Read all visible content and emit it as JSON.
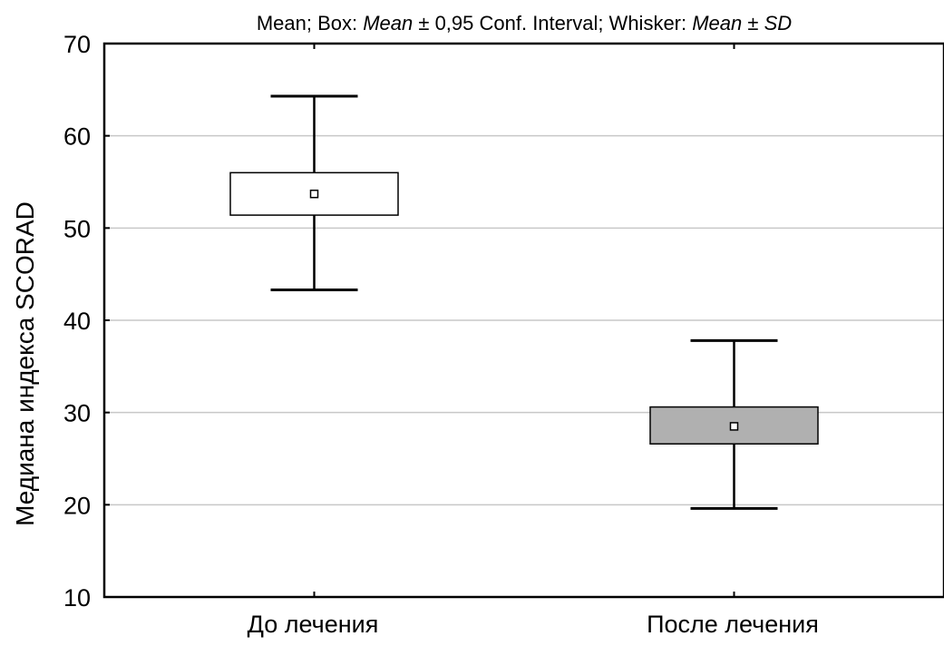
{
  "chart_data": {
    "type": "box",
    "title_parts": [
      {
        "text": "Mean; Box: ",
        "italic": false
      },
      {
        "text": "Mean",
        "italic": true
      },
      {
        "text": " ± 0,95 Conf. Interval; Whisker: ",
        "italic": false
      },
      {
        "text": "Mean",
        "italic": true
      },
      {
        "text": " ± ",
        "italic": false
      },
      {
        "text": "SD",
        "italic": true
      }
    ],
    "xlabel": "",
    "ylabel": "Медиана индекса SCORAD",
    "ylim": [
      10,
      70
    ],
    "yticks": [
      "10",
      "20",
      "30",
      "40",
      "50",
      "60",
      "70"
    ],
    "grid": true,
    "categories": [
      "До лечения",
      "После лечения"
    ],
    "series": [
      {
        "mean": 53.7,
        "ci_low": 51.4,
        "ci_high": 56.0,
        "sd_low": 43.3,
        "sd_high": 64.3,
        "box_color": "#ffffff"
      },
      {
        "mean": 28.5,
        "ci_low": 26.6,
        "ci_high": 30.6,
        "sd_low": 19.6,
        "sd_high": 37.8,
        "box_color": "#b0b0b0"
      }
    ]
  }
}
